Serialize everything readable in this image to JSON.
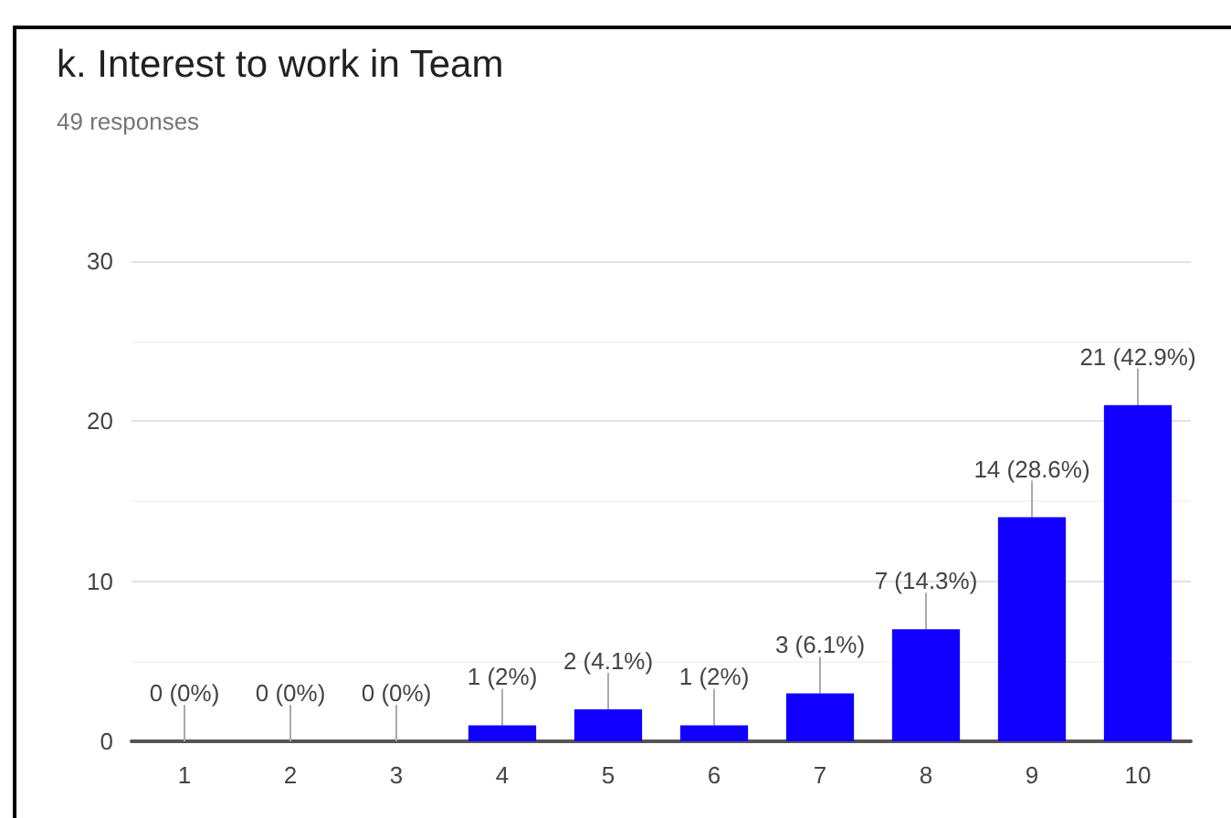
{
  "chart_data": {
    "type": "bar",
    "title": "k. Interest to work in Team",
    "subtitle": "49 responses",
    "categories": [
      "1",
      "2",
      "3",
      "4",
      "5",
      "6",
      "7",
      "8",
      "9",
      "10"
    ],
    "values": [
      0,
      0,
      0,
      1,
      2,
      1,
      3,
      7,
      14,
      21
    ],
    "value_labels": [
      "0 (0%)",
      "0 (0%)",
      "0 (0%)",
      "1 (2%)",
      "2 (4.1%)",
      "1 (2%)",
      "3 (6.1%)",
      "7 (14.3%)",
      "14 (28.6%)",
      "21 (42.9%)"
    ],
    "color": "#1100ff",
    "ylim": [
      0,
      30
    ],
    "yticks": [
      0,
      {
        "value": 5,
        "label": null
      },
      10,
      {
        "value": 15,
        "label": null
      },
      20,
      {
        "value": 25,
        "label": null
      },
      30
    ],
    "grid": "y"
  }
}
